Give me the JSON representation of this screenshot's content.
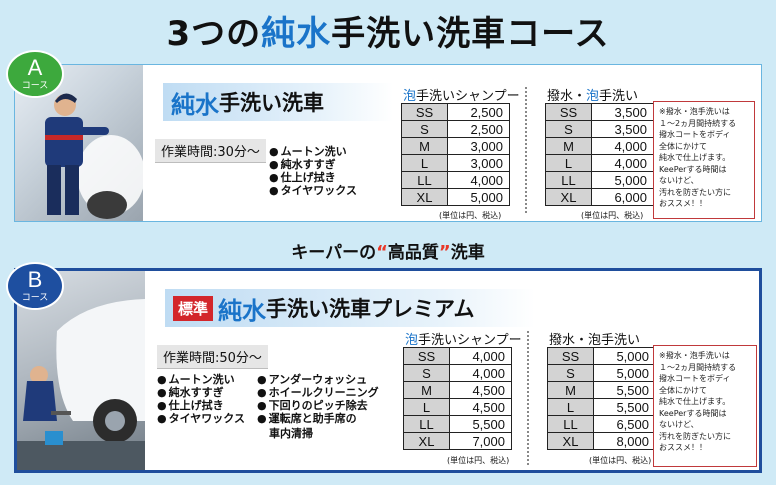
{
  "title": {
    "part1": "3つの",
    "part2": "純水",
    "part3": "手洗い洗車コース"
  },
  "tagline": {
    "part1": "キーパーの",
    "quote_open": "“",
    "highlight": "高品質",
    "quote_close": "”",
    "part2": "洗車"
  },
  "course_a": {
    "badge_letter": "A",
    "badge_sub": "コース",
    "name_blue": "純水",
    "name_rest": "手洗い洗車",
    "work_time": "作業時間:30分〜",
    "menu": [
      "ムートン洗い",
      "純水すすぎ",
      "仕上げ拭き",
      "タイヤワックス"
    ],
    "table1_title_blue": "泡",
    "table1_title_rest": "手洗いシャンプー",
    "table1": [
      {
        "size": "SS",
        "price": "2,500"
      },
      {
        "size": "S",
        "price": "2,500"
      },
      {
        "size": "M",
        "price": "3,000"
      },
      {
        "size": "L",
        "price": "3,000"
      },
      {
        "size": "LL",
        "price": "4,000"
      },
      {
        "size": "XL",
        "price": "5,000"
      }
    ],
    "table2_title_pre": "撥水・",
    "table2_title_blue": "泡",
    "table2_title_rest": "手洗い",
    "table2": [
      {
        "size": "SS",
        "price": "3,500"
      },
      {
        "size": "S",
        "price": "3,500"
      },
      {
        "size": "M",
        "price": "4,000"
      },
      {
        "size": "L",
        "price": "4,000"
      },
      {
        "size": "LL",
        "price": "5,000"
      },
      {
        "size": "XL",
        "price": "6,000"
      }
    ],
    "unit_note": "(単位は円、税込)",
    "note_lines": [
      "※撥水・泡手洗いは",
      "１〜2ヵ月間持続する",
      "撥水コートをボディ",
      "全体にかけて",
      "純水で仕上げます。",
      "KeePerする時間は",
      "ないけど、",
      "汚れを防ぎたい方に",
      "おススメ！！"
    ]
  },
  "course_b": {
    "badge_letter": "B",
    "badge_sub": "コース",
    "std_tag": "標準",
    "name_blue": "純水",
    "name_rest": "手洗い洗車プレミアム",
    "work_time": "作業時間:50分〜",
    "menu_col1": [
      "ムートン洗い",
      "純水すすぎ",
      "仕上げ拭き",
      "タイヤワックス"
    ],
    "menu_col2": [
      "アンダーウォッシュ",
      "ホイールクリーニング",
      "下回りのピッチ除去",
      "運転席と助手席の"
    ],
    "menu_col2_cont": "車内清掃",
    "table1_title_blue": "泡",
    "table1_title_rest": "手洗いシャンプー",
    "table1": [
      {
        "size": "SS",
        "price": "4,000"
      },
      {
        "size": "S",
        "price": "4,000"
      },
      {
        "size": "M",
        "price": "4,500"
      },
      {
        "size": "L",
        "price": "4,500"
      },
      {
        "size": "LL",
        "price": "5,500"
      },
      {
        "size": "XL",
        "price": "7,000"
      }
    ],
    "table2_title": "撥水・泡手洗い",
    "table2": [
      {
        "size": "SS",
        "price": "5,000"
      },
      {
        "size": "S",
        "price": "5,000"
      },
      {
        "size": "M",
        "price": "5,500"
      },
      {
        "size": "L",
        "price": "5,500"
      },
      {
        "size": "LL",
        "price": "6,500"
      },
      {
        "size": "XL",
        "price": "8,000"
      }
    ],
    "unit_note": "(単位は円、税込)",
    "note_lines": [
      "※撥水・泡手洗いは",
      "１〜2ヵ月間持続する",
      "撥水コートをボディ",
      "全体にかけて",
      "純水で仕上げます。",
      "KeePerする時間は",
      "ないけど、",
      "汚れを防ぎたい方に",
      "おススメ！！"
    ]
  }
}
